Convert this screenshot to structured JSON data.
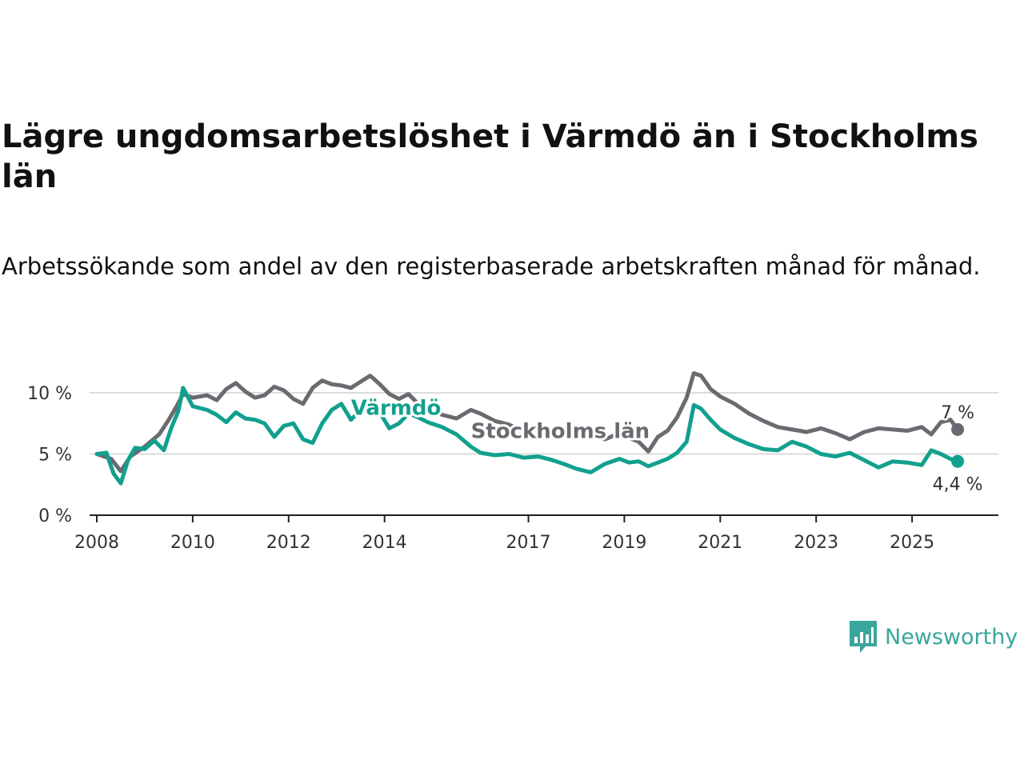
{
  "title": "Lägre ungdomsarbetslöshet i Värmdö än i Stockholms län",
  "subtitle": "Arbetssökande som andel av den registerbaserade arbetskraften månad för månad.",
  "brand": "Newsworthy",
  "colors": {
    "varmdo": "#12a08e",
    "stockholm": "#6b6a70",
    "grid": "#dcdcdc",
    "axis": "#222222",
    "brand": "#3aa59b"
  },
  "chart_data": {
    "type": "line",
    "title": "Lägre ungdomsarbetslöshet i Värmdö än i Stockholms län",
    "xlabel": "",
    "ylabel": "",
    "xlim": [
      2007.85,
      2026.8
    ],
    "ylim": [
      0,
      13
    ],
    "y_ticks": [
      {
        "value": 0,
        "label": "0 %"
      },
      {
        "value": 5,
        "label": "5 %"
      },
      {
        "value": 10,
        "label": "10 %"
      }
    ],
    "x_ticks": [
      {
        "value": 2008,
        "label": "2008"
      },
      {
        "value": 2010,
        "label": "2010"
      },
      {
        "value": 2012,
        "label": "2012"
      },
      {
        "value": 2014,
        "label": "2014"
      },
      {
        "value": 2017,
        "label": "2017"
      },
      {
        "value": 2019,
        "label": "2019"
      },
      {
        "value": 2021,
        "label": "2021"
      },
      {
        "value": 2023,
        "label": "2023"
      },
      {
        "value": 2025,
        "label": "2025"
      }
    ],
    "grid": "horizontal",
    "series": [
      {
        "name": "Stockholms län",
        "color": "#6b6a70",
        "label": "Stockholms län",
        "label_x": 2015.8,
        "label_y": 6.9,
        "end_label": "7 %",
        "x": [
          2008.0,
          2008.3,
          2008.5,
          2008.7,
          2009.0,
          2009.3,
          2009.5,
          2009.65,
          2009.8,
          2010.0,
          2010.3,
          2010.5,
          2010.7,
          2010.9,
          2011.1,
          2011.3,
          2011.5,
          2011.7,
          2011.9,
          2012.1,
          2012.3,
          2012.5,
          2012.7,
          2012.9,
          2013.1,
          2013.3,
          2013.5,
          2013.7,
          2013.9,
          2014.1,
          2014.3,
          2014.5,
          2014.7,
          2014.9,
          2015.2,
          2015.5,
          2015.8,
          2016.0,
          2016.3,
          2016.6,
          2016.9,
          2017.2,
          2017.5,
          2017.8,
          2018.0,
          2018.3,
          2018.6,
          2018.9,
          2019.1,
          2019.3,
          2019.5,
          2019.7,
          2019.9,
          2020.1,
          2020.3,
          2020.45,
          2020.6,
          2020.8,
          2021.0,
          2021.3,
          2021.6,
          2021.9,
          2022.2,
          2022.5,
          2022.8,
          2023.1,
          2023.4,
          2023.7,
          2024.0,
          2024.3,
          2024.6,
          2024.9,
          2025.2,
          2025.4,
          2025.6,
          2025.8,
          2025.95
        ],
        "y": [
          5.0,
          4.6,
          3.6,
          4.8,
          5.6,
          6.6,
          7.8,
          8.8,
          9.9,
          9.6,
          9.8,
          9.4,
          10.3,
          10.8,
          10.1,
          9.6,
          9.8,
          10.5,
          10.2,
          9.5,
          9.1,
          10.4,
          11.0,
          10.7,
          10.6,
          10.4,
          10.9,
          11.4,
          10.7,
          9.9,
          9.5,
          9.9,
          9.1,
          8.8,
          8.2,
          7.9,
          8.6,
          8.3,
          7.7,
          7.4,
          6.8,
          7.2,
          7.0,
          6.4,
          6.9,
          6.5,
          6.2,
          6.7,
          6.3,
          6.0,
          5.2,
          6.4,
          6.9,
          8.0,
          9.6,
          11.6,
          11.4,
          10.3,
          9.7,
          9.1,
          8.3,
          7.7,
          7.2,
          7.0,
          6.8,
          7.1,
          6.7,
          6.2,
          6.8,
          7.1,
          7.0,
          6.9,
          7.2,
          6.6,
          7.6,
          7.8,
          7.0
        ]
      },
      {
        "name": "Värmdö",
        "color": "#12a08e",
        "label": "Värmdö",
        "label_x": 2013.3,
        "label_y": 8.8,
        "end_label": "4,4 %",
        "x": [
          2008.0,
          2008.2,
          2008.35,
          2008.5,
          2008.65,
          2008.8,
          2009.0,
          2009.2,
          2009.4,
          2009.55,
          2009.7,
          2009.8,
          2010.0,
          2010.3,
          2010.5,
          2010.7,
          2010.9,
          2011.1,
          2011.3,
          2011.5,
          2011.7,
          2011.9,
          2012.1,
          2012.3,
          2012.5,
          2012.7,
          2012.9,
          2013.1,
          2013.3,
          2013.5,
          2013.7,
          2013.9,
          2014.1,
          2014.3,
          2014.5,
          2014.7,
          2014.9,
          2015.2,
          2015.5,
          2015.8,
          2016.0,
          2016.3,
          2016.6,
          2016.9,
          2017.2,
          2017.5,
          2017.8,
          2018.0,
          2018.3,
          2018.6,
          2018.9,
          2019.1,
          2019.3,
          2019.5,
          2019.7,
          2019.9,
          2020.1,
          2020.3,
          2020.45,
          2020.6,
          2020.8,
          2021.0,
          2021.3,
          2021.6,
          2021.9,
          2022.2,
          2022.5,
          2022.8,
          2023.1,
          2023.4,
          2023.7,
          2024.0,
          2024.3,
          2024.6,
          2024.9,
          2025.2,
          2025.4,
          2025.6,
          2025.8,
          2025.95
        ],
        "y": [
          5.0,
          5.1,
          3.4,
          2.6,
          4.5,
          5.5,
          5.4,
          6.1,
          5.3,
          7.1,
          8.5,
          10.4,
          8.9,
          8.6,
          8.2,
          7.6,
          8.4,
          7.9,
          7.8,
          7.5,
          6.4,
          7.3,
          7.5,
          6.2,
          5.9,
          7.5,
          8.6,
          9.1,
          7.8,
          8.6,
          9.4,
          8.4,
          7.1,
          7.5,
          8.3,
          8.0,
          7.6,
          7.2,
          6.6,
          5.6,
          5.1,
          4.9,
          5.0,
          4.7,
          4.8,
          4.5,
          4.1,
          3.8,
          3.5,
          4.2,
          4.6,
          4.3,
          4.4,
          4.0,
          4.3,
          4.6,
          5.1,
          6.0,
          9.0,
          8.7,
          7.8,
          7.0,
          6.3,
          5.8,
          5.4,
          5.3,
          6.0,
          5.6,
          5.0,
          4.8,
          5.1,
          4.5,
          3.9,
          4.4,
          4.3,
          4.1,
          5.3,
          5.0,
          4.6,
          4.4
        ]
      }
    ]
  }
}
